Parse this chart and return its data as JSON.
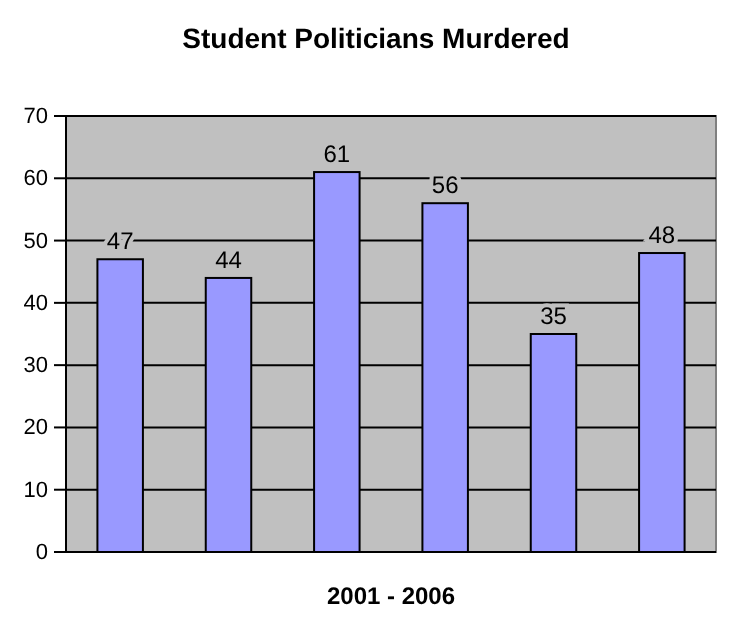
{
  "chart_data": {
    "type": "bar",
    "title": "Student Politicians  Murdered",
    "xlabel": "2001 - 2006",
    "categories": [
      null,
      null,
      null,
      null,
      null,
      null
    ],
    "values": [
      47,
      44,
      61,
      56,
      35,
      48
    ],
    "color": "#9999ff",
    "ylim": [
      0,
      70
    ],
    "yticks": [
      0,
      10,
      20,
      30,
      40,
      50,
      60,
      70
    ],
    "grid": "y",
    "data_labels": true
  }
}
